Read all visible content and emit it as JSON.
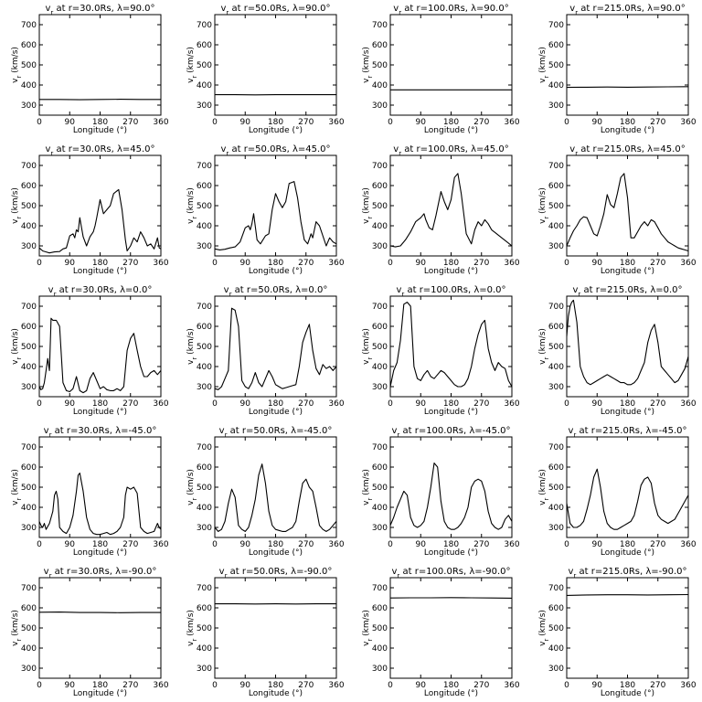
{
  "chart_data": {
    "type": "line",
    "layout": {
      "rows": 5,
      "cols": 4
    },
    "xlabel": "Longitude (°)",
    "ylabel": "v_r (km/s)",
    "xlim": [
      0,
      360
    ],
    "ylim": [
      250,
      750
    ],
    "xticks": [
      0,
      90,
      180,
      270,
      360
    ],
    "yticks": [
      300,
      400,
      500,
      600,
      700
    ],
    "grid": false,
    "panels": [
      {
        "title": "v_r at r=30.0Rs, λ=90.0°",
        "x": [
          0,
          60,
          120,
          180,
          240,
          300,
          360
        ],
        "y": [
          328,
          328,
          327,
          328,
          329,
          328,
          328
        ]
      },
      {
        "title": "v_r at r=50.0Rs, λ=90.0°",
        "x": [
          0,
          60,
          120,
          180,
          240,
          300,
          360
        ],
        "y": [
          352,
          352,
          351,
          352,
          352,
          352,
          352
        ]
      },
      {
        "title": "v_r at r=100.0Rs, λ=90.0°",
        "x": [
          0,
          60,
          120,
          180,
          240,
          300,
          360
        ],
        "y": [
          376,
          376,
          376,
          376,
          376,
          376,
          376
        ]
      },
      {
        "title": "v_r at r=215.0Rs, λ=90.0°",
        "x": [
          0,
          60,
          120,
          180,
          240,
          300,
          360
        ],
        "y": [
          388,
          389,
          390,
          389,
          390,
          391,
          392
        ]
      },
      {
        "title": "v_r at r=30.0Rs, λ=45.0°",
        "x": [
          0,
          10,
          20,
          30,
          45,
          60,
          70,
          80,
          90,
          100,
          105,
          110,
          115,
          120,
          130,
          140,
          150,
          160,
          165,
          170,
          180,
          190,
          200,
          210,
          220,
          235,
          245,
          255,
          260,
          270,
          280,
          290,
          300,
          310,
          320,
          330,
          340,
          350,
          355,
          360
        ],
        "y": [
          290,
          275,
          270,
          265,
          270,
          272,
          285,
          290,
          350,
          360,
          340,
          380,
          370,
          440,
          345,
          300,
          345,
          370,
          400,
          440,
          530,
          460,
          480,
          500,
          560,
          580,
          480,
          330,
          275,
          300,
          340,
          320,
          370,
          340,
          300,
          310,
          285,
          340,
          290,
          285
        ]
      },
      {
        "title": "v_r at r=50.0Rs, λ=45.0°",
        "x": [
          0,
          15,
          30,
          45,
          60,
          75,
          90,
          100,
          105,
          110,
          115,
          125,
          135,
          150,
          160,
          170,
          180,
          190,
          200,
          210,
          220,
          235,
          245,
          255,
          265,
          275,
          285,
          290,
          300,
          310,
          320,
          330,
          340,
          350,
          360
        ],
        "y": [
          285,
          280,
          283,
          290,
          295,
          320,
          390,
          400,
          380,
          410,
          460,
          330,
          310,
          350,
          360,
          480,
          560,
          520,
          490,
          520,
          610,
          620,
          540,
          420,
          330,
          310,
          360,
          340,
          420,
          400,
          350,
          300,
          340,
          320,
          310
        ]
      },
      {
        "title": "v_r at r=100.0Rs, λ=45.0°",
        "x": [
          0,
          15,
          30,
          45,
          60,
          75,
          90,
          100,
          105,
          115,
          125,
          135,
          150,
          160,
          170,
          180,
          190,
          200,
          210,
          225,
          240,
          250,
          260,
          270,
          280,
          290,
          300,
          315,
          330,
          345,
          360
        ],
        "y": [
          300,
          295,
          300,
          330,
          370,
          420,
          440,
          460,
          430,
          390,
          380,
          450,
          570,
          520,
          480,
          530,
          640,
          660,
          560,
          360,
          310,
          380,
          420,
          400,
          430,
          410,
          380,
          360,
          340,
          320,
          300
        ]
      },
      {
        "title": "v_r at r=215.0Rs, λ=45.0°",
        "x": [
          0,
          10,
          20,
          30,
          40,
          50,
          60,
          70,
          80,
          90,
          100,
          110,
          120,
          130,
          140,
          150,
          160,
          170,
          180,
          190,
          200,
          210,
          220,
          230,
          240,
          250,
          260,
          270,
          280,
          290,
          300,
          310,
          320,
          330,
          340,
          350,
          360
        ],
        "y": [
          300,
          340,
          375,
          400,
          430,
          445,
          440,
          400,
          360,
          350,
          400,
          460,
          555,
          505,
          490,
          560,
          640,
          660,
          540,
          340,
          340,
          370,
          400,
          420,
          400,
          430,
          420,
          390,
          360,
          340,
          320,
          310,
          300,
          290,
          285,
          280,
          275
        ]
      },
      {
        "title": "v_r at r=30.0Rs, λ=0.0°",
        "x": [
          0,
          5,
          10,
          15,
          20,
          25,
          30,
          35,
          40,
          50,
          60,
          70,
          80,
          90,
          100,
          110,
          120,
          130,
          140,
          150,
          160,
          170,
          180,
          190,
          200,
          210,
          220,
          230,
          240,
          250,
          260,
          270,
          280,
          290,
          300,
          310,
          320,
          330,
          340,
          350,
          360
        ],
        "y": [
          300,
          285,
          290,
          320,
          380,
          440,
          380,
          640,
          630,
          630,
          600,
          320,
          280,
          275,
          290,
          350,
          280,
          270,
          280,
          340,
          370,
          330,
          290,
          300,
          285,
          280,
          280,
          290,
          280,
          300,
          480,
          540,
          565,
          480,
          400,
          350,
          350,
          370,
          380,
          360,
          380
        ]
      },
      {
        "title": "v_r at r=50.0Rs, λ=0.0°",
        "x": [
          0,
          10,
          20,
          30,
          40,
          50,
          60,
          70,
          80,
          90,
          100,
          110,
          120,
          130,
          140,
          150,
          160,
          170,
          180,
          190,
          200,
          210,
          220,
          230,
          240,
          250,
          260,
          270,
          280,
          290,
          300,
          310,
          320,
          330,
          340,
          350,
          360
        ],
        "y": [
          290,
          285,
          300,
          340,
          380,
          690,
          680,
          600,
          330,
          300,
          290,
          320,
          370,
          320,
          300,
          340,
          380,
          350,
          310,
          300,
          290,
          295,
          300,
          305,
          310,
          400,
          520,
          570,
          610,
          480,
          390,
          360,
          410,
          390,
          400,
          380,
          400
        ]
      },
      {
        "title": "v_r at r=100.0Rs, λ=0.0°",
        "x": [
          0,
          10,
          20,
          30,
          40,
          50,
          60,
          70,
          80,
          90,
          100,
          110,
          120,
          130,
          140,
          150,
          160,
          170,
          180,
          190,
          200,
          210,
          220,
          230,
          240,
          250,
          260,
          270,
          280,
          290,
          300,
          310,
          320,
          330,
          340,
          350,
          360
        ],
        "y": [
          300,
          380,
          420,
          530,
          710,
          720,
          700,
          400,
          340,
          330,
          360,
          380,
          350,
          340,
          360,
          380,
          370,
          350,
          330,
          310,
          300,
          300,
          310,
          340,
          400,
          490,
          560,
          610,
          630,
          490,
          420,
          380,
          420,
          400,
          390,
          330,
          300
        ]
      },
      {
        "title": "v_r at r=215.0Rs, λ=0.0°",
        "x": [
          0,
          5,
          10,
          15,
          20,
          30,
          40,
          50,
          60,
          70,
          80,
          90,
          100,
          110,
          120,
          130,
          140,
          150,
          160,
          170,
          180,
          190,
          200,
          210,
          220,
          230,
          240,
          250,
          260,
          270,
          280,
          290,
          300,
          310,
          320,
          330,
          340,
          350,
          360
        ],
        "y": [
          550,
          650,
          700,
          720,
          730,
          620,
          400,
          350,
          320,
          310,
          320,
          330,
          340,
          350,
          360,
          350,
          340,
          330,
          320,
          320,
          310,
          310,
          320,
          340,
          380,
          420,
          520,
          580,
          610,
          520,
          400,
          380,
          360,
          340,
          320,
          330,
          360,
          390,
          450
        ]
      },
      {
        "title": "v_r at r=30.0Rs, λ=-45.0°",
        "x": [
          0,
          5,
          10,
          15,
          20,
          30,
          40,
          45,
          50,
          55,
          60,
          70,
          80,
          90,
          100,
          110,
          115,
          120,
          130,
          140,
          150,
          160,
          170,
          180,
          190,
          200,
          210,
          220,
          230,
          240,
          250,
          255,
          260,
          270,
          280,
          290,
          300,
          310,
          320,
          330,
          340,
          350,
          355,
          360
        ],
        "y": [
          330,
          310,
          300,
          320,
          290,
          320,
          380,
          460,
          480,
          440,
          300,
          280,
          270,
          300,
          360,
          480,
          560,
          570,
          480,
          350,
          290,
          270,
          265,
          265,
          270,
          275,
          265,
          270,
          280,
          300,
          350,
          460,
          500,
          490,
          500,
          470,
          300,
          280,
          270,
          275,
          280,
          320,
          300,
          290
        ]
      },
      {
        "title": "v_r at r=50.0Rs, λ=-45.0°",
        "x": [
          0,
          10,
          20,
          30,
          40,
          50,
          60,
          70,
          80,
          90,
          100,
          110,
          120,
          130,
          140,
          150,
          160,
          170,
          180,
          190,
          200,
          210,
          220,
          230,
          240,
          250,
          260,
          270,
          280,
          290,
          300,
          310,
          320,
          330,
          340,
          350,
          360
        ],
        "y": [
          300,
          280,
          290,
          330,
          420,
          490,
          450,
          310,
          290,
          280,
          300,
          360,
          440,
          560,
          615,
          520,
          380,
          310,
          290,
          285,
          280,
          280,
          290,
          300,
          330,
          430,
          520,
          540,
          500,
          480,
          400,
          310,
          290,
          280,
          290,
          310,
          330
        ]
      },
      {
        "title": "v_r at r=100.0Rs, λ=-45.0°",
        "x": [
          0,
          10,
          20,
          30,
          40,
          50,
          60,
          70,
          80,
          90,
          100,
          110,
          120,
          130,
          140,
          150,
          160,
          170,
          180,
          190,
          200,
          210,
          220,
          230,
          240,
          250,
          260,
          270,
          280,
          290,
          300,
          310,
          320,
          330,
          340,
          350,
          360
        ],
        "y": [
          310,
          350,
          400,
          440,
          480,
          460,
          350,
          310,
          300,
          310,
          330,
          400,
          500,
          620,
          600,
          430,
          330,
          300,
          290,
          290,
          300,
          320,
          350,
          400,
          500,
          530,
          540,
          530,
          480,
          380,
          320,
          300,
          290,
          300,
          340,
          360,
          330
        ]
      },
      {
        "title": "v_r at r=215.0Rs, λ=-45.0°",
        "x": [
          0,
          10,
          20,
          30,
          40,
          50,
          60,
          70,
          80,
          90,
          100,
          110,
          120,
          130,
          140,
          150,
          160,
          170,
          180,
          190,
          200,
          210,
          220,
          230,
          240,
          250,
          260,
          270,
          280,
          290,
          300,
          310,
          320,
          330,
          340,
          350,
          360
        ],
        "y": [
          420,
          320,
          300,
          300,
          310,
          330,
          390,
          460,
          550,
          590,
          500,
          380,
          320,
          300,
          290,
          290,
          300,
          310,
          320,
          330,
          360,
          430,
          510,
          540,
          550,
          520,
          420,
          360,
          340,
          330,
          320,
          330,
          340,
          370,
          400,
          430,
          460
        ]
      },
      {
        "title": "v_r at r=30.0Rs, λ=-90.0°",
        "x": [
          0,
          60,
          120,
          180,
          240,
          300,
          360
        ],
        "y": [
          578,
          579,
          577,
          577,
          576,
          577,
          577
        ]
      },
      {
        "title": "v_r at r=50.0Rs, λ=-90.0°",
        "x": [
          0,
          60,
          120,
          180,
          240,
          300,
          360
        ],
        "y": [
          620,
          620,
          619,
          620,
          619,
          620,
          620
        ]
      },
      {
        "title": "v_r at r=100.0Rs, λ=-90.0°",
        "x": [
          0,
          60,
          120,
          180,
          240,
          300,
          360
        ],
        "y": [
          649,
          650,
          650,
          651,
          650,
          649,
          648
        ]
      },
      {
        "title": "v_r at r=215.0Rs, λ=-90.0°",
        "x": [
          0,
          60,
          120,
          180,
          240,
          300,
          360
        ],
        "y": [
          662,
          664,
          665,
          665,
          664,
          665,
          666
        ]
      }
    ]
  }
}
